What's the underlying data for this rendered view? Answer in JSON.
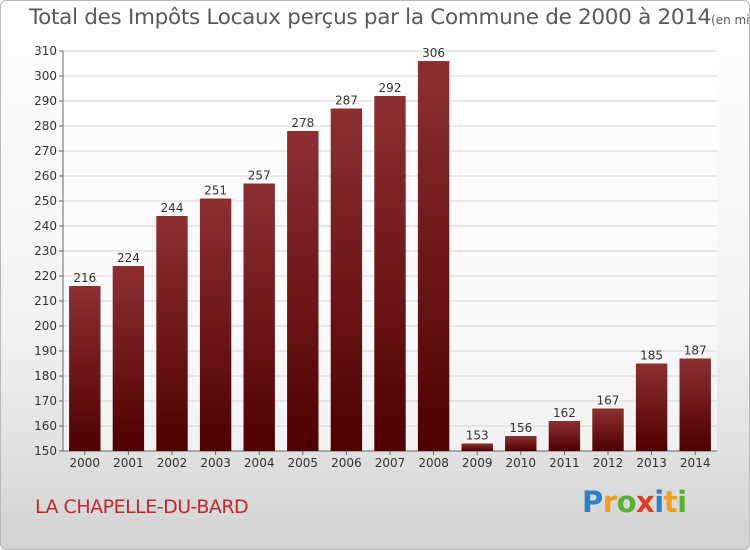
{
  "header": {
    "title": "Total des Impôts Locaux perçus par la Commune de 2000 à 2014",
    "unit": "(en milliers d'€)"
  },
  "footer": {
    "commune": "LA CHAPELLE-DU-BARD",
    "logo_letters": [
      {
        "ch": "P",
        "color": "#2f7fc8"
      },
      {
        "ch": "r",
        "color": "#f0a020"
      },
      {
        "ch": "o",
        "color": "#58b030"
      },
      {
        "ch": "x",
        "color": "#e03a2a"
      },
      {
        "ch": "i",
        "color": "#2f7fc8"
      },
      {
        "ch": "t",
        "color": "#f0a020"
      },
      {
        "ch": "i",
        "color": "#58b030"
      }
    ]
  },
  "colors": {
    "bar_top": "#8c2f33",
    "bar_bottom": "#4f0000",
    "grid": "#d6d6d6",
    "axis_text": "#333333"
  },
  "chart_data": {
    "type": "bar",
    "title": "Total des Impôts Locaux perçus par la Commune de 2000 à 2014",
    "unit": "(en milliers d'€)",
    "categories": [
      "2000",
      "2001",
      "2002",
      "2003",
      "2004",
      "2005",
      "2006",
      "2007",
      "2008",
      "2009",
      "2010",
      "2011",
      "2012",
      "2013",
      "2014"
    ],
    "values": [
      216,
      224,
      244,
      251,
      257,
      278,
      287,
      292,
      306,
      153,
      156,
      162,
      167,
      185,
      187
    ],
    "ylim": [
      150,
      310
    ],
    "ytick_step": 10,
    "grid": true,
    "data_labels": true
  }
}
